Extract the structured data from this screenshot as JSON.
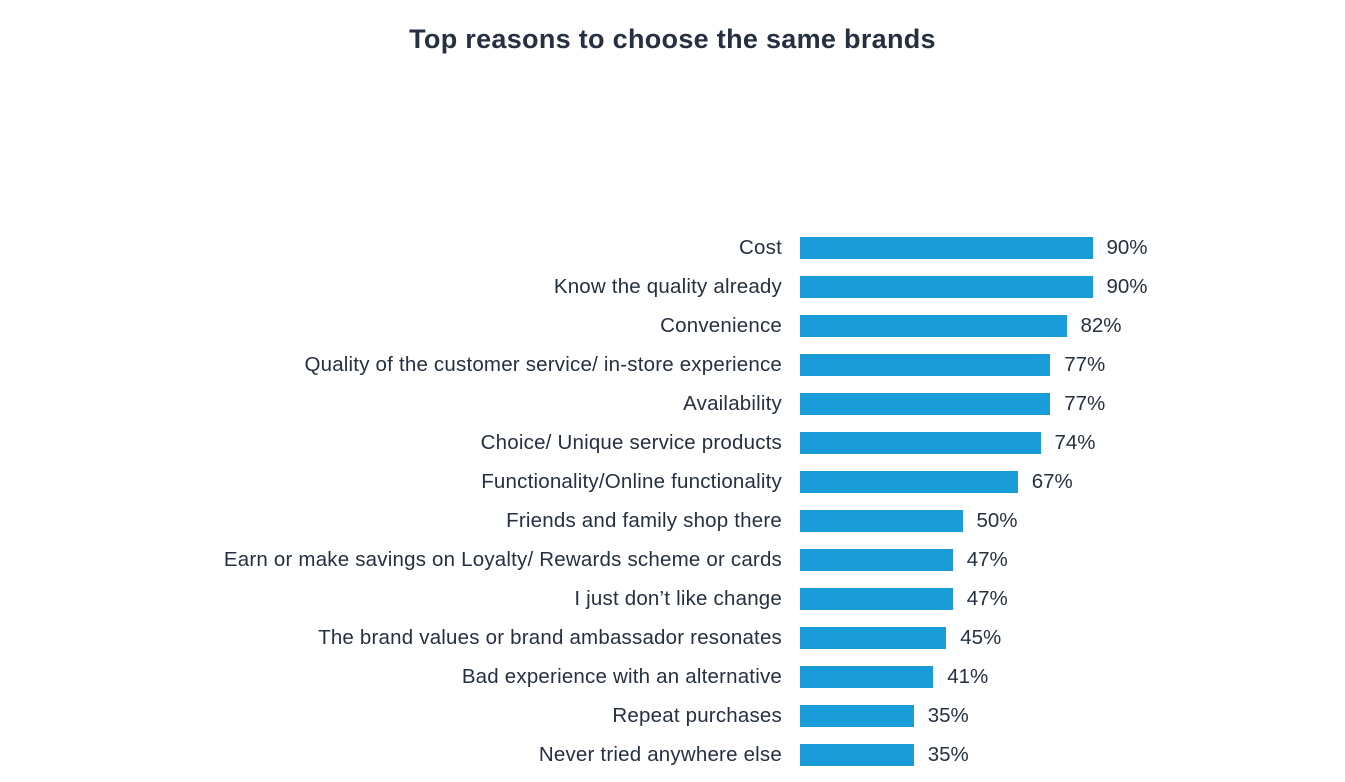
{
  "chart_data": {
    "type": "bar",
    "orientation": "horizontal",
    "title": "Top reasons to choose the same brands",
    "categories": [
      "Cost",
      "Know the quality already",
      "Convenience",
      "Quality of the customer service/ in-store experience",
      "Availability",
      "Choice/ Unique service products",
      "Functionality/Online functionality",
      "Friends and family shop there",
      "Earn or make savings on Loyalty/ Rewards scheme or cards",
      "I just don’t like change",
      "The brand values or brand ambassador resonates",
      "Bad experience with an alternative",
      "Repeat purchases",
      "Never tried anywhere else"
    ],
    "values": [
      90,
      90,
      82,
      77,
      77,
      74,
      67,
      50,
      47,
      47,
      45,
      41,
      35,
      35
    ],
    "value_suffix": "%",
    "xlabel": "",
    "ylabel": "",
    "xlim": [
      0,
      100
    ],
    "grid": false,
    "legend": false,
    "data_labels": true,
    "bar_color": "#1a9cd8",
    "text_color": "#253040"
  }
}
